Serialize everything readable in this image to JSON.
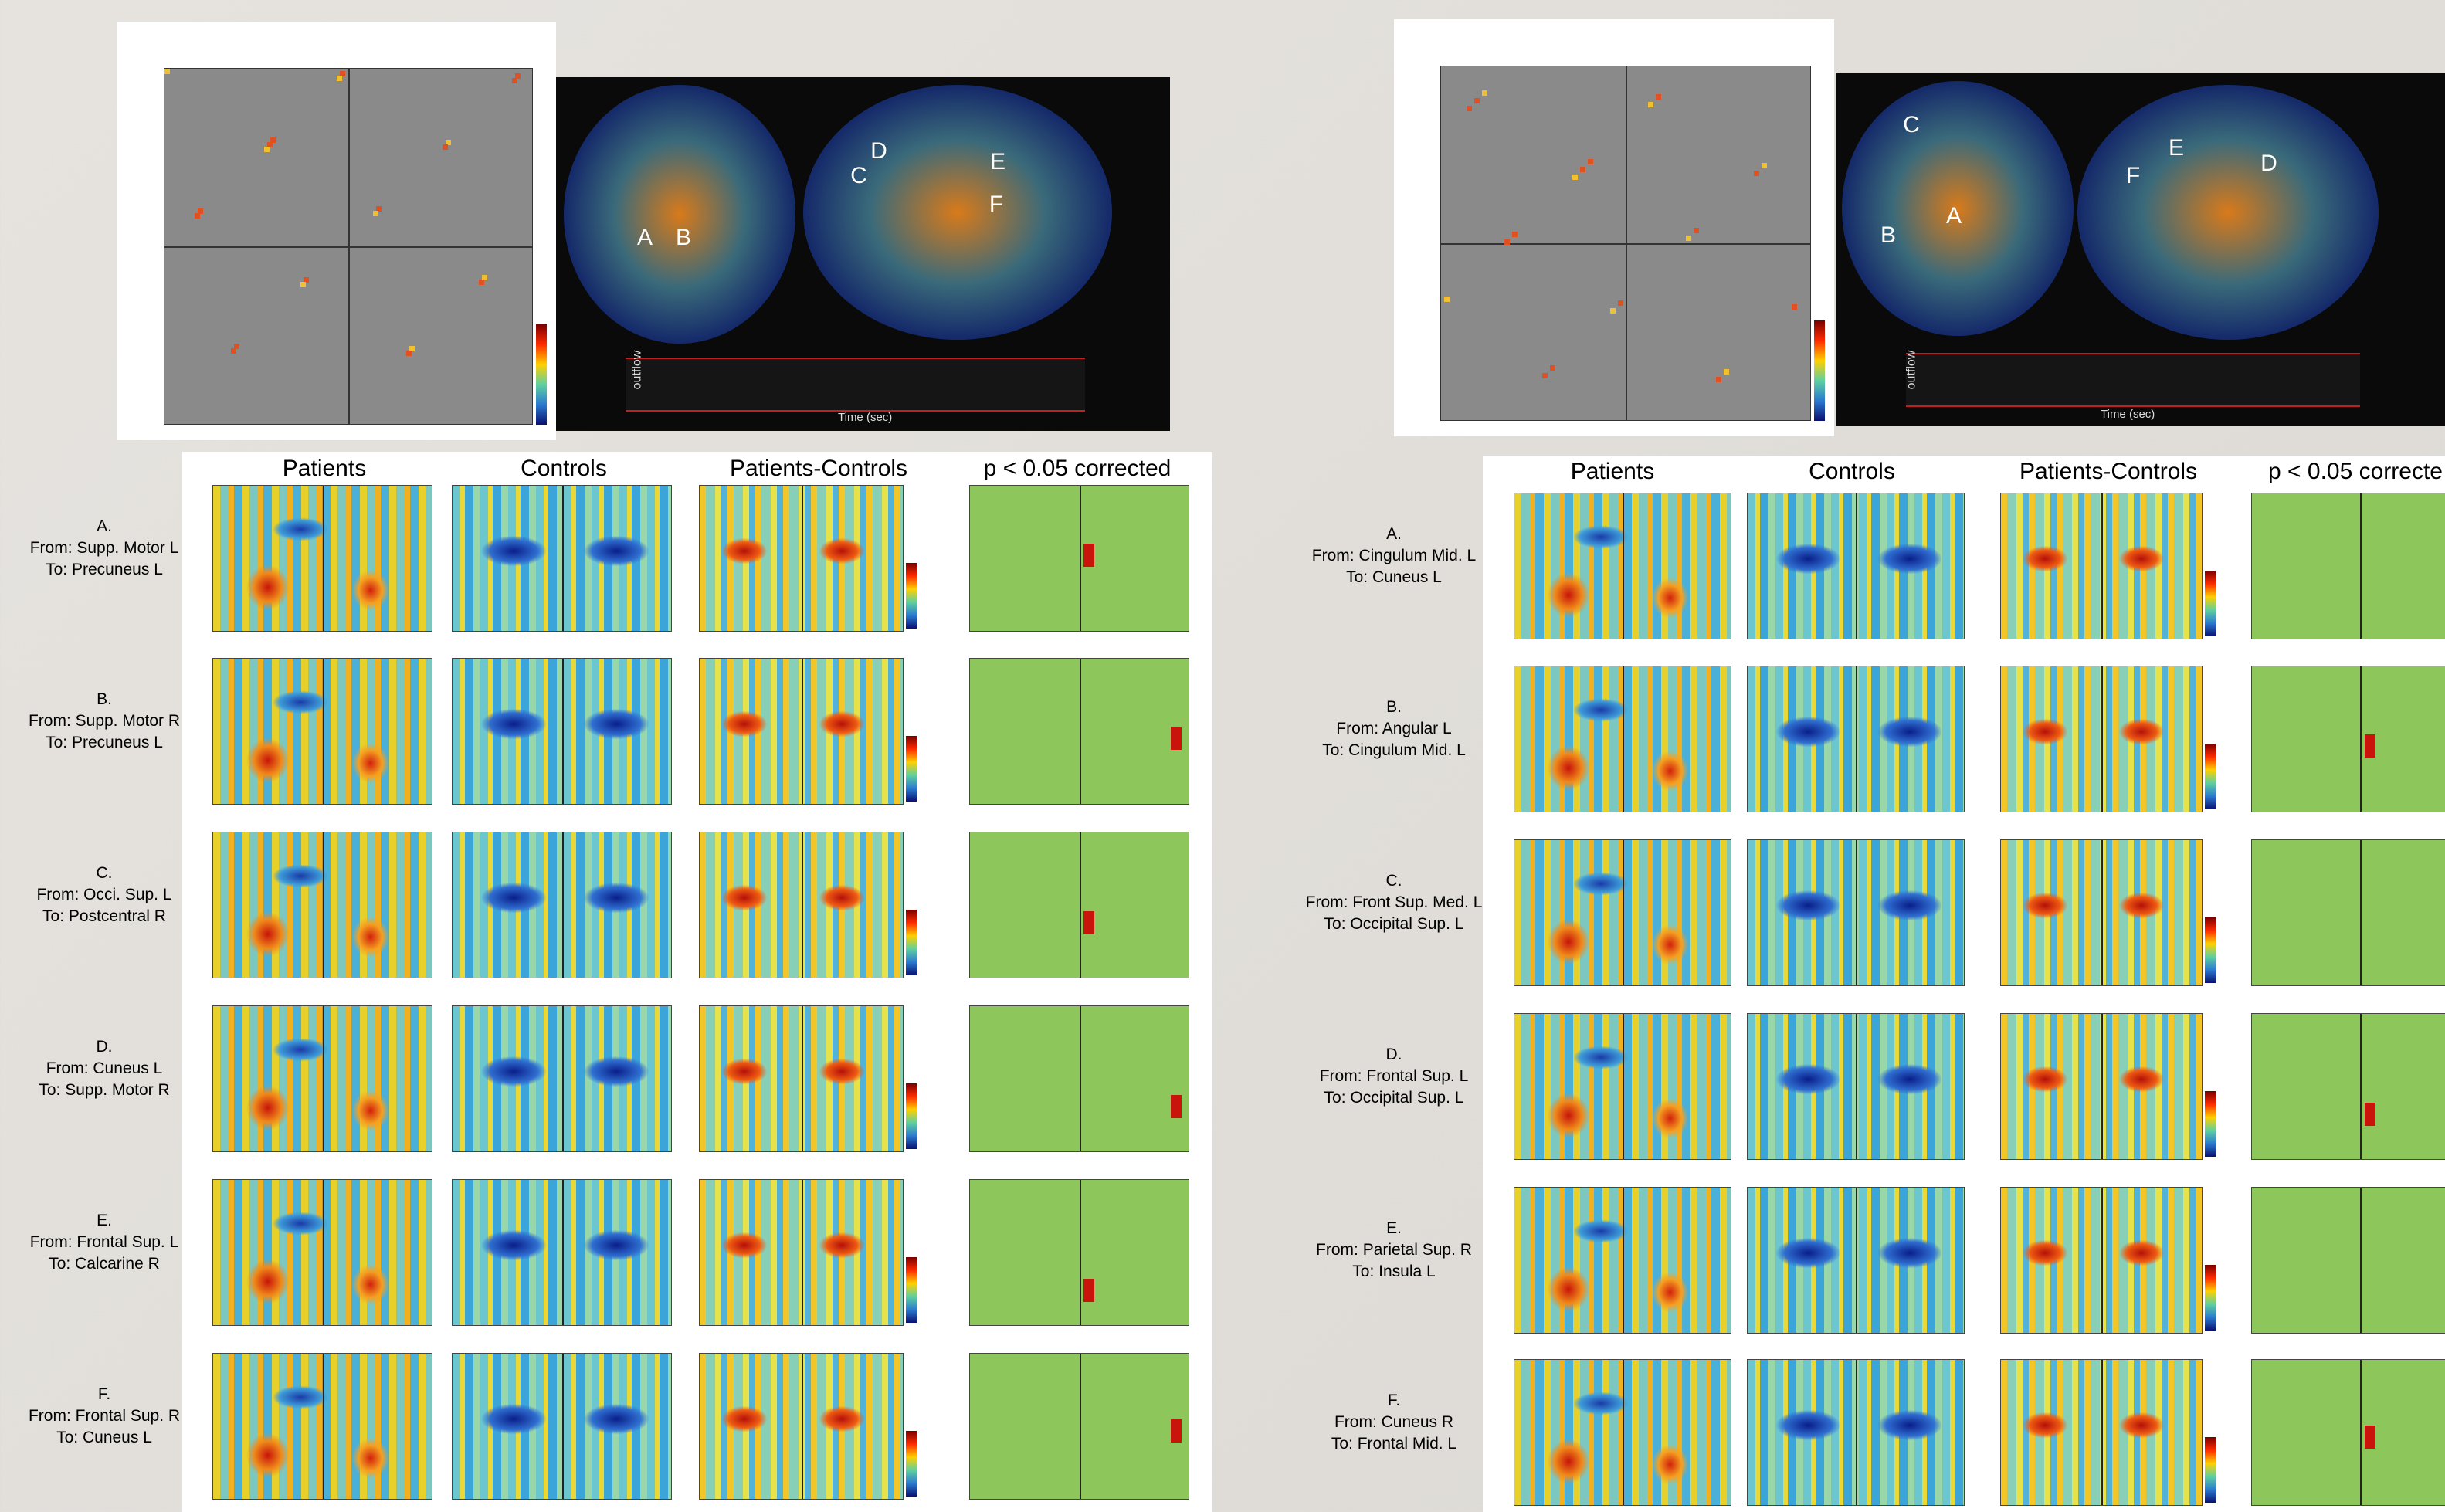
{
  "panels": [
    {
      "columns": [
        "Patients",
        "Controls",
        "Patients-Controls",
        "p < 0.05 corrected"
      ],
      "rows": [
        {
          "letter": "A.",
          "from": "From: Supp. Motor L",
          "to": "To: Precuneus L"
        },
        {
          "letter": "B.",
          "from": "From: Supp. Motor R",
          "to": "To: Precuneus L"
        },
        {
          "letter": "C.",
          "from": "From: Occi. Sup. L",
          "to": "To: Postcentral R"
        },
        {
          "letter": "D.",
          "from": "From: Cuneus L",
          "to": "To: Supp. Motor R"
        },
        {
          "letter": "E.",
          "from": "From: Frontal Sup. L",
          "to": "To: Calcarine R"
        },
        {
          "letter": "F.",
          "from": "From: Frontal Sup. R",
          "to": "To: Cuneus L"
        }
      ],
      "brain_labels": [
        "A",
        "B",
        "C",
        "D",
        "E",
        "F"
      ],
      "timecourse": {
        "y_label": "outflow",
        "x_label": "Time (sec)"
      }
    },
    {
      "columns": [
        "Patients",
        "Controls",
        "Patients-Controls",
        "p < 0.05 correcte"
      ],
      "rows": [
        {
          "letter": "A.",
          "from": "From: Cingulum Mid. L",
          "to": "To: Cuneus L"
        },
        {
          "letter": "B.",
          "from": "From: Angular L",
          "to": "To: Cingulum Mid. L"
        },
        {
          "letter": "C.",
          "from": "From: Front Sup. Med. L",
          "to": "To: Occipital Sup. L"
        },
        {
          "letter": "D.",
          "from": "From: Frontal Sup. L",
          "to": "To: Occipital Sup. L"
        },
        {
          "letter": "E.",
          "from": "From: Parietal Sup. R",
          "to": "To: Insula L"
        },
        {
          "letter": "F.",
          "from": "From: Cuneus R",
          "to": "To: Frontal Mid. L"
        }
      ],
      "brain_labels": [
        "C",
        "B",
        "A",
        "E",
        "F",
        "D"
      ],
      "timecourse": {
        "y_label": "outflow",
        "x_label": "Time (sec)"
      }
    }
  ]
}
